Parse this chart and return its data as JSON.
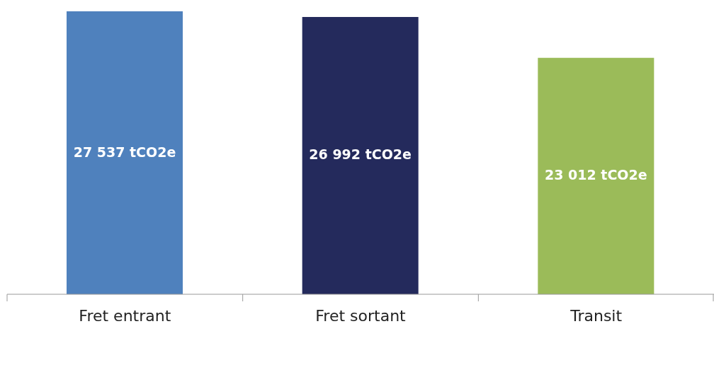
{
  "chart_data": {
    "type": "bar",
    "categories": [
      "Fret entrant",
      "Fret sortant",
      "Transit"
    ],
    "values": [
      27537,
      26992,
      23012
    ],
    "colors": [
      "#4f81bd",
      "#242a5c",
      "#9bbb59"
    ],
    "value_labels": [
      "27 537 tCO2e",
      "26 992 tCO2e",
      "23 012 tCO2e"
    ],
    "grid": false,
    "legend": false
  }
}
